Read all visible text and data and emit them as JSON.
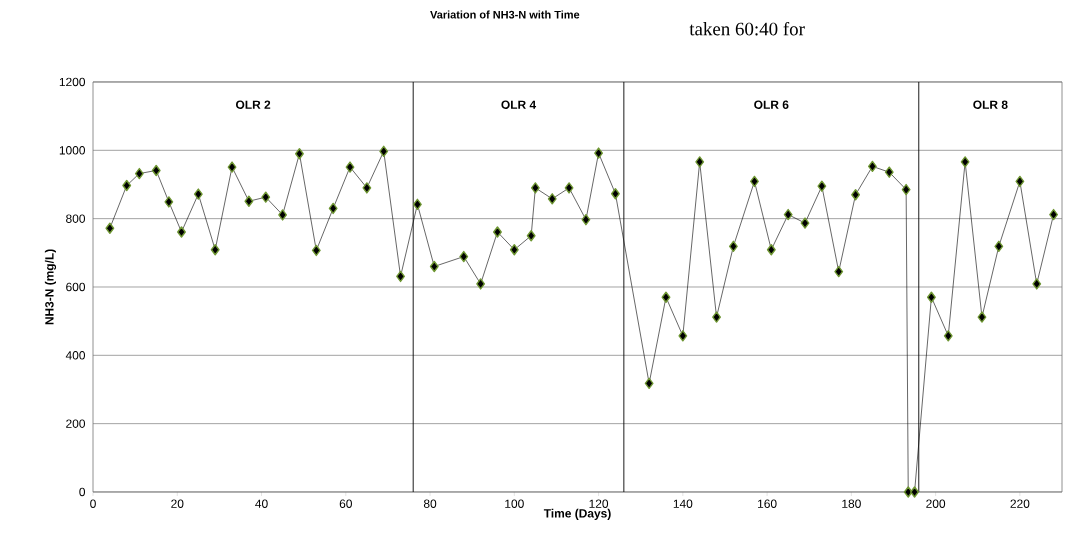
{
  "chart_data": {
    "type": "line",
    "title": "Variation of NH3-N with Time",
    "xlabel": "Time (Days)",
    "ylabel": "NH3-N (mg/L)",
    "x": [
      4,
      8,
      11,
      15,
      18,
      21,
      25,
      29,
      33,
      37,
      41,
      45,
      49,
      53,
      57,
      61,
      65,
      69,
      73,
      77,
      81,
      88,
      92,
      96,
      100,
      104,
      105,
      109,
      113,
      117,
      120,
      124,
      132,
      136,
      140,
      144,
      148,
      152,
      157,
      161,
      165,
      169,
      173,
      177,
      181,
      185,
      189,
      193,
      193.5,
      195,
      199,
      203,
      207,
      211,
      215,
      220,
      224,
      228
    ],
    "series": [
      {
        "color": "#000000",
        "values": [
          772,
          897,
          932,
          941,
          849,
          761,
          872,
          709,
          951,
          851,
          863,
          811,
          990,
          707,
          830,
          951,
          890,
          997,
          631,
          842,
          660,
          689,
          609,
          761,
          709,
          750,
          890,
          858,
          890,
          797,
          992,
          873,
          318,
          570,
          457,
          966,
          512,
          719,
          909,
          709,
          812,
          787,
          895,
          645,
          870,
          953,
          936,
          885,
          0,
          0,
          570,
          457,
          966,
          512,
          719,
          909,
          609,
          812
        ]
      }
    ],
    "xlim": [
      0,
      230
    ],
    "ylim": [
      0,
      1200
    ],
    "xticks": [
      0,
      20,
      40,
      60,
      80,
      100,
      120,
      140,
      160,
      180,
      200,
      220
    ],
    "yticks": [
      0,
      200,
      400,
      600,
      800,
      1000,
      1200
    ],
    "grid": "y",
    "marker": "diamond",
    "line_style": "solid",
    "ref_lines": [
      {
        "axis": "x",
        "value": 76,
        "color": "#000000"
      },
      {
        "axis": "x",
        "value": 126,
        "color": "#000000"
      },
      {
        "axis": "x",
        "value": 196,
        "color": "#000000"
      }
    ],
    "annotations": [
      "OLR  2",
      "OLR 4",
      "OLR 6",
      "OLR 8",
      "taken 60:40 for"
    ]
  }
}
